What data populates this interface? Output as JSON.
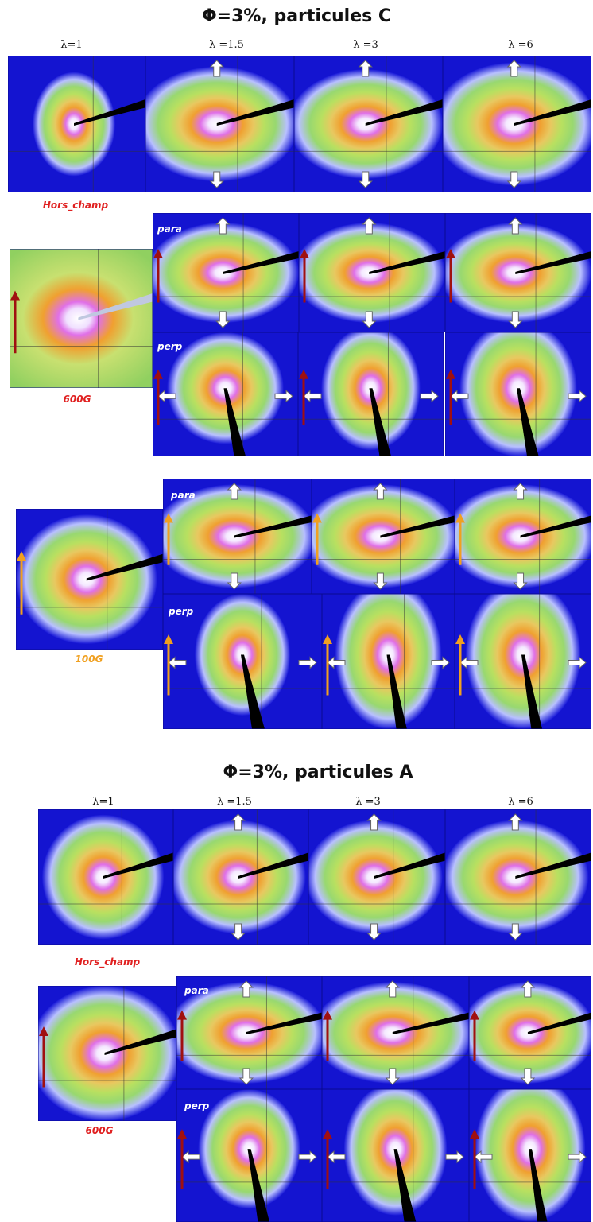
{
  "sections": [
    {
      "title": "Φ=3%, particules C",
      "lambda_labels": [
        "λ=1",
        "λ =1.5",
        "λ =3",
        "λ =6"
      ],
      "blocks": [
        {
          "label": "Hors_champ"
        },
        {
          "label": "600G",
          "para": "para",
          "perp": "perp"
        },
        {
          "label": "100G",
          "para": "para",
          "perp": "perp"
        }
      ]
    },
    {
      "title": "Φ=3%, particules A",
      "lambda_labels": [
        "λ=1",
        "λ =1.5",
        "λ =3",
        "λ =6"
      ],
      "blocks": [
        {
          "label": "Hors_champ"
        },
        {
          "label": "600G",
          "para": "para",
          "perp": "perp"
        }
      ]
    }
  ]
}
